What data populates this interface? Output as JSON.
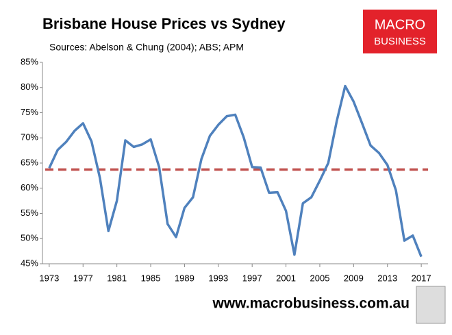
{
  "chart_data": {
    "type": "line",
    "title": "Brisbane House Prices vs Sydney",
    "subtitle": "Sources: Abelson & Chung (2004); ABS; APM",
    "logo": [
      "MACRO",
      "BUSINESS"
    ],
    "footer": "www.macrobusiness.com.au",
    "x": [
      1973,
      1974,
      1975,
      1976,
      1977,
      1978,
      1979,
      1980,
      1981,
      1982,
      1983,
      1984,
      1985,
      1986,
      1987,
      1988,
      1989,
      1990,
      1991,
      1992,
      1993,
      1994,
      1995,
      1996,
      1997,
      1998,
      1999,
      2000,
      2001,
      2002,
      2003,
      2004,
      2005,
      2006,
      2007,
      2008,
      2009,
      2010,
      2011,
      2012,
      2013,
      2014,
      2015,
      2016,
      2017
    ],
    "series": [
      {
        "name": "Brisbane vs Sydney",
        "color": "#4f81bd",
        "values": [
          64,
          67.6,
          69.2,
          71.4,
          72.9,
          69.3,
          62,
          51.5,
          57.5,
          69.5,
          68.2,
          68.7,
          69.7,
          64.2,
          52.9,
          50.3,
          56.1,
          58.2,
          65.8,
          70.4,
          72.6,
          74.3,
          74.6,
          70.1,
          64.2,
          64.1,
          59.1,
          59.2,
          55.5,
          46.8,
          57,
          58.2,
          61.5,
          65,
          73.3,
          80.3,
          77.2,
          72.9,
          68.5,
          67,
          64.6,
          59.6,
          49.6,
          50.6,
          46.4
        ]
      }
    ],
    "reference_line": {
      "value": 63.7,
      "color": "#c0504d",
      "style": "dashed"
    },
    "xlim": [
      1972.2,
      2017.8
    ],
    "xticks": [
      1973,
      1977,
      1981,
      1985,
      1989,
      1993,
      1997,
      2001,
      2005,
      2009,
      2013,
      2017
    ],
    "ylim": [
      45,
      85
    ],
    "yticks": [
      {
        "value": 45,
        "label": "45%"
      },
      {
        "value": 50,
        "label": "50%"
      },
      {
        "value": 55,
        "label": "55%"
      },
      {
        "value": 60,
        "label": "60%"
      },
      {
        "value": 65,
        "label": "65%"
      },
      {
        "value": 70,
        "label": "70%"
      },
      {
        "value": 75,
        "label": "75%"
      },
      {
        "value": 80,
        "label": "80%"
      },
      {
        "value": 85,
        "label": "85%"
      }
    ]
  }
}
